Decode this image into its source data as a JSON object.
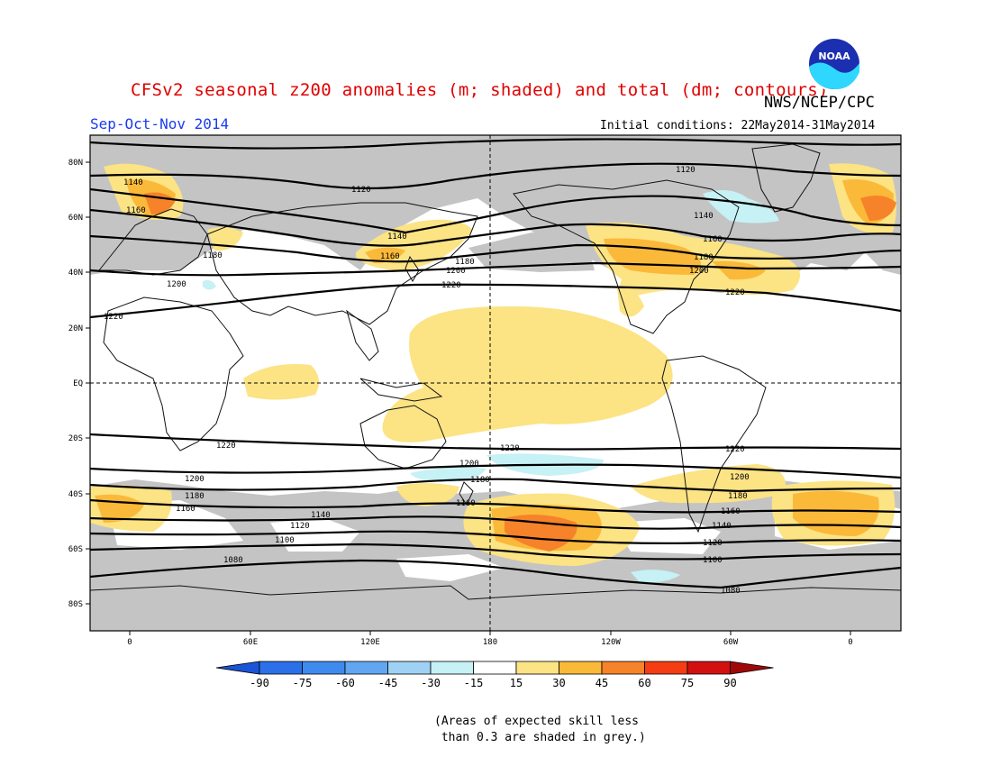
{
  "header": {
    "title": "CFSv2 seasonal z200 anomalies (m; shaded) and total (dm; contours)",
    "organization": "NWS/NCEP/CPC",
    "season": "Sep-Oct-Nov 2014",
    "initial_conditions": "Initial conditions: 22May2014-31May2014",
    "logo_text": "NOAA"
  },
  "map": {
    "lat_labels": [
      "80N",
      "60N",
      "40N",
      "20N",
      "EQ",
      "20S",
      "40S",
      "60S",
      "80S"
    ],
    "lon_labels": [
      "0",
      "60E",
      "120E",
      "180",
      "120W",
      "60W",
      "0"
    ],
    "contour_labels": [
      "1080",
      "1100",
      "1120",
      "1140",
      "1160",
      "1180",
      "1200",
      "1220"
    ]
  },
  "colorbar": {
    "ticks": [
      "-90",
      "-75",
      "-60",
      "-45",
      "-30",
      "-15",
      "15",
      "30",
      "45",
      "60",
      "75",
      "90"
    ],
    "colors": [
      "#1a55d8",
      "#2b70e8",
      "#3f8aee",
      "#62a6f2",
      "#9fd1f4",
      "#c6f1f5",
      "#ffffff",
      "#fce384",
      "#fbb93a",
      "#f6822a",
      "#f43d13",
      "#d21010",
      "#a00808"
    ]
  },
  "note": {
    "line1": "(Areas of expected skill less",
    "line2": " than 0.3 are shaded in grey.)"
  }
}
